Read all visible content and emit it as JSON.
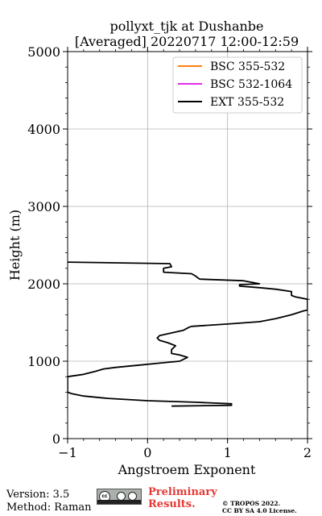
{
  "chart_data": {
    "type": "line",
    "title_line1": "pollyxt_tjk at Dushanbe",
    "title_line2": "[Averaged] 20220717 12:00-12:59",
    "xlabel": "Angstroem Exponent",
    "ylabel": "Height (m)",
    "xlim": [
      -1,
      2
    ],
    "ylim": [
      0,
      5000
    ],
    "xticks": [
      -1,
      0,
      1,
      2
    ],
    "yticks": [
      0,
      1000,
      2000,
      3000,
      4000,
      5000
    ],
    "grid": true,
    "legend_position": "top-right",
    "series": [
      {
        "name": "BSC 355-532",
        "color": "#ff7f0e",
        "points": []
      },
      {
        "name": "BSC 532-1064",
        "color": "#e52ce5",
        "points": []
      },
      {
        "name": "EXT 355-532",
        "color": "#000000",
        "points": [
          [
            0.3,
            420
          ],
          [
            1.05,
            430
          ],
          [
            1.05,
            450
          ],
          [
            0.6,
            470
          ],
          [
            0.0,
            490
          ],
          [
            -0.5,
            520
          ],
          [
            -0.8,
            550
          ],
          [
            -0.95,
            580
          ],
          [
            -1.0,
            600
          ],
          [
            -1.0,
            800
          ],
          [
            -0.8,
            830
          ],
          [
            -0.65,
            870
          ],
          [
            -0.55,
            900
          ],
          [
            -0.4,
            920
          ],
          [
            -0.1,
            950
          ],
          [
            0.2,
            980
          ],
          [
            0.4,
            1000
          ],
          [
            0.5,
            1050
          ],
          [
            0.4,
            1080
          ],
          [
            0.3,
            1100
          ],
          [
            0.3,
            1150
          ],
          [
            0.35,
            1200
          ],
          [
            0.25,
            1240
          ],
          [
            0.15,
            1270
          ],
          [
            0.12,
            1300
          ],
          [
            0.15,
            1330
          ],
          [
            0.45,
            1400
          ],
          [
            0.52,
            1440
          ],
          [
            0.55,
            1450
          ],
          [
            1.0,
            1480
          ],
          [
            1.4,
            1510
          ],
          [
            1.6,
            1550
          ],
          [
            1.8,
            1600
          ],
          [
            1.95,
            1650
          ],
          [
            2.0,
            1660
          ],
          [
            2.0,
            1800
          ],
          [
            1.85,
            1830
          ],
          [
            1.8,
            1850
          ],
          [
            1.8,
            1900
          ],
          [
            1.6,
            1930
          ],
          [
            1.4,
            1950
          ],
          [
            1.15,
            1970
          ],
          [
            1.15,
            1990
          ],
          [
            1.4,
            2000
          ],
          [
            1.2,
            2040
          ],
          [
            0.65,
            2060
          ],
          [
            0.6,
            2100
          ],
          [
            0.55,
            2130
          ],
          [
            0.2,
            2150
          ],
          [
            0.2,
            2200
          ],
          [
            0.3,
            2220
          ],
          [
            0.28,
            2260
          ],
          [
            -1.0,
            2280
          ]
        ]
      }
    ]
  },
  "footer": {
    "version": "Version: 3.5",
    "method": "Method: Raman",
    "cc_badge_text": "cc",
    "prelim_line1": "Preliminary",
    "prelim_line2": "Results.",
    "copyright_line1": "© TROPOS 2022.",
    "copyright_line2": "CC BY SA 4.0 License."
  }
}
